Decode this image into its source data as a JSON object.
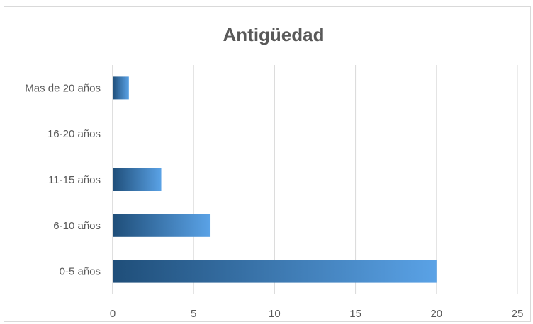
{
  "chart_data": {
    "type": "bar",
    "orientation": "horizontal",
    "title": "Antigüedad",
    "categories": [
      "0-5 años",
      "6-10 años",
      "11-15 años",
      "16-20 años",
      "Mas de 20 años"
    ],
    "series": [
      {
        "values": [
          20,
          6,
          3,
          0,
          1
        ]
      }
    ],
    "xlim": [
      0,
      25
    ],
    "x_ticks": [
      "0",
      "5",
      "10",
      "15",
      "20",
      "25"
    ],
    "grid": true,
    "legend": "none",
    "colors": {
      "bar_dark": "#1f4e79",
      "bar_light": "#5aa2e6",
      "grid": "#d9d9d9",
      "text": "#595959"
    }
  }
}
